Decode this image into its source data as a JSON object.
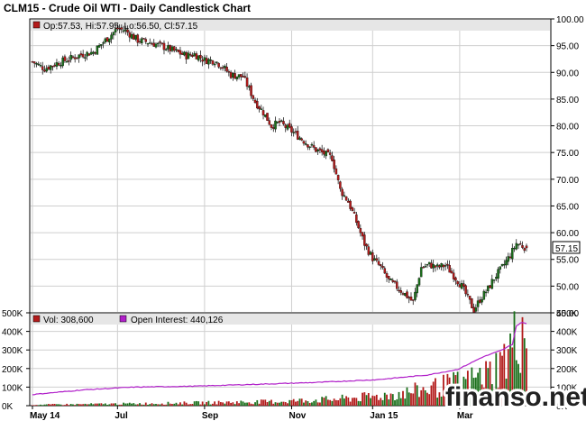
{
  "title": "CLM15 - Crude Oil WTI - Daily Candlestick Chart",
  "watermark": "finanso.net",
  "colors": {
    "up": "#1a6f1a",
    "down": "#b31b1b",
    "open_interest": "#b01fc9",
    "legend_band": "#e6e6e6",
    "grid": "#cfcfcf"
  },
  "chart_data": [
    {
      "type": "candlestick",
      "legend": {
        "label": "Op:57.53, Hi:57.95, Lo:56.50, Cl:57.15"
      },
      "last": {
        "open": 57.53,
        "high": 57.95,
        "low": 56.5,
        "close": 57.15,
        "label": "57.15"
      },
      "ylim": [
        45,
        100
      ],
      "y_ticks": [
        "100.00",
        "95.00",
        "90.00",
        "85.00",
        "80.00",
        "75.00",
        "70.00",
        "65.00",
        "60.00",
        "55.00",
        "50.00",
        "45.00"
      ],
      "x_labels": [
        "May 14",
        "Jul",
        "Sep",
        "Nov",
        "Jan 15",
        "Mar"
      ],
      "x_label_positions": [
        0,
        42,
        85,
        128,
        168,
        211
      ],
      "n_days": 245,
      "close_path": [
        [
          0,
          92.0
        ],
        [
          6,
          90.7
        ],
        [
          12,
          91.7
        ],
        [
          18,
          92.5
        ],
        [
          24,
          93.3
        ],
        [
          30,
          93.8
        ],
        [
          36,
          96.0
        ],
        [
          42,
          98.2
        ],
        [
          46,
          97.8
        ],
        [
          52,
          96.0
        ],
        [
          58,
          95.6
        ],
        [
          64,
          94.9
        ],
        [
          70,
          94.0
        ],
        [
          76,
          93.1
        ],
        [
          80,
          93.4
        ],
        [
          85,
          92.3
        ],
        [
          90,
          92.2
        ],
        [
          94,
          91.0
        ],
        [
          98,
          89.5
        ],
        [
          104,
          89.2
        ],
        [
          110,
          84.5
        ],
        [
          114,
          82.5
        ],
        [
          118,
          80.0
        ],
        [
          122,
          80.6
        ],
        [
          128,
          79.0
        ],
        [
          132,
          77.8
        ],
        [
          136,
          76.6
        ],
        [
          140,
          75.5
        ],
        [
          144,
          74.8
        ],
        [
          148,
          74.0
        ],
        [
          152,
          68.0
        ],
        [
          156,
          65.8
        ],
        [
          160,
          62.0
        ],
        [
          164,
          57.9
        ],
        [
          168,
          55.2
        ],
        [
          172,
          53.5
        ],
        [
          176,
          51.0
        ],
        [
          180,
          49.8
        ],
        [
          184,
          48.5
        ],
        [
          188,
          47.0
        ],
        [
          192,
          53.5
        ],
        [
          196,
          54.0
        ],
        [
          200,
          53.5
        ],
        [
          204,
          53.9
        ],
        [
          208,
          52.0
        ],
        [
          212,
          50.0
        ],
        [
          216,
          47.0
        ],
        [
          218,
          45.5
        ],
        [
          221,
          47.5
        ],
        [
          225,
          49.5
        ],
        [
          228,
          51.5
        ],
        [
          232,
          53.5
        ],
        [
          236,
          55.8
        ],
        [
          239,
          58.0
        ],
        [
          242,
          57.5
        ],
        [
          244,
          57.15
        ]
      ]
    },
    {
      "type": "bar",
      "legend": {
        "volume_label": "Vol: 308,600",
        "oi_label": "Open Interest: 440,126"
      },
      "volume": 308600,
      "open_interest": 440126,
      "ylim": [
        0,
        500000
      ],
      "y_ticks_left": [
        "500K",
        "400K",
        "300K",
        "200K",
        "100K",
        "0K"
      ],
      "y_ticks_right": [
        "500K",
        "400K",
        "300K",
        "200K",
        "100K",
        "0K"
      ],
      "volume_path": [
        [
          0,
          5000
        ],
        [
          60,
          12000
        ],
        [
          120,
          22000
        ],
        [
          150,
          35000
        ],
        [
          170,
          50000
        ],
        [
          185,
          70000
        ],
        [
          195,
          90000
        ],
        [
          205,
          110000
        ],
        [
          215,
          130000
        ],
        [
          225,
          170000
        ],
        [
          232,
          230000
        ],
        [
          238,
          340000
        ],
        [
          242,
          420000
        ],
        [
          244,
          308600
        ]
      ],
      "oi_path": [
        [
          0,
          60000
        ],
        [
          25,
          85000
        ],
        [
          50,
          100000
        ],
        [
          80,
          105000
        ],
        [
          110,
          115000
        ],
        [
          140,
          125000
        ],
        [
          170,
          140000
        ],
        [
          195,
          165000
        ],
        [
          210,
          195000
        ],
        [
          222,
          260000
        ],
        [
          232,
          300000
        ],
        [
          237,
          330000
        ],
        [
          239,
          430000
        ],
        [
          242,
          450000
        ],
        [
          244,
          440126
        ]
      ]
    }
  ]
}
